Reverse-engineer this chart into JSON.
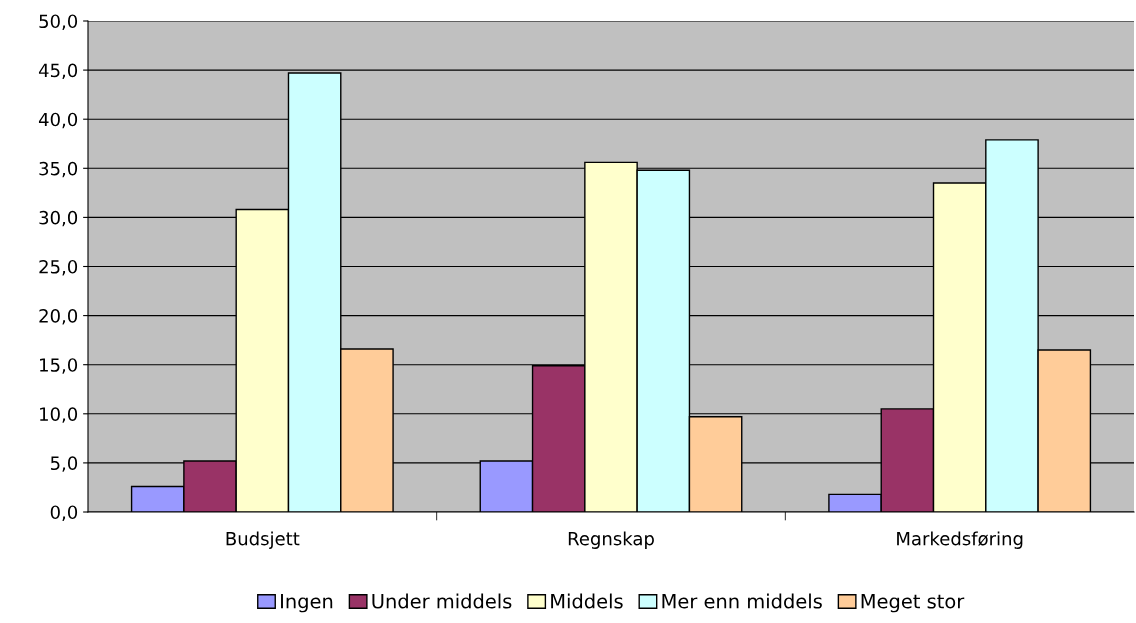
{
  "chart_data": {
    "type": "bar",
    "categories": [
      "Budsjett",
      "Regnskap",
      "Markedsføring"
    ],
    "series": [
      {
        "name": "Ingen",
        "color": "#9999ff",
        "values": [
          2.6,
          5.2,
          1.8
        ]
      },
      {
        "name": "Under middels",
        "color": "#993366",
        "values": [
          5.2,
          14.9,
          10.5
        ]
      },
      {
        "name": "Middels",
        "color": "#ffffcc",
        "values": [
          30.8,
          35.6,
          33.5
        ]
      },
      {
        "name": "Mer enn middels",
        "color": "#ccffff",
        "values": [
          44.7,
          34.8,
          37.9
        ]
      },
      {
        "name": "Meget stor",
        "color": "#ffcc99",
        "values": [
          16.6,
          9.7,
          16.5
        ]
      }
    ],
    "ylim": [
      0,
      50
    ],
    "yticks": [
      {
        "value": 0,
        "label": "0,0"
      },
      {
        "value": 5,
        "label": "5,0"
      },
      {
        "value": 10,
        "label": "10,0"
      },
      {
        "value": 15,
        "label": "15,0"
      },
      {
        "value": 20,
        "label": "20,0"
      },
      {
        "value": 25,
        "label": "25,0"
      },
      {
        "value": 30,
        "label": "30,0"
      },
      {
        "value": 35,
        "label": "35,0"
      },
      {
        "value": 40,
        "label": "40,0"
      },
      {
        "value": 45,
        "label": "45,0"
      },
      {
        "value": 50,
        "label": "50,0"
      }
    ],
    "grid": "y",
    "legend": "bottom"
  }
}
